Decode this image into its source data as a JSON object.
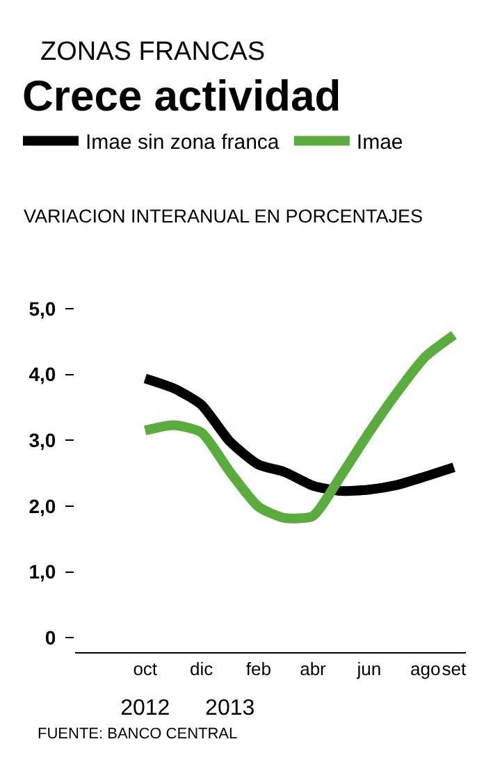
{
  "chart_data": {
    "type": "line",
    "subtitle": "ZONAS FRANCAS",
    "title": "Crece actividad",
    "ylabel": "VARIACION INTERANUAL EN PORCENTAJES",
    "x": [
      "2012-10",
      "2012-11",
      "2012-12",
      "2013-01",
      "2013-02",
      "2013-03",
      "2013-04",
      "2013-05",
      "2013-06",
      "2013-07",
      "2013-08",
      "2013-09"
    ],
    "series": [
      {
        "name": "Imae sin zona franca",
        "color": "#000000",
        "values": [
          3.94,
          3.79,
          3.54,
          2.98,
          2.63,
          2.52,
          2.31,
          2.23,
          2.25,
          2.32,
          2.45,
          2.59
        ]
      },
      {
        "name": "Imae",
        "color": "#5aad3c",
        "values": [
          3.15,
          3.23,
          3.12,
          2.52,
          1.99,
          1.82,
          1.85,
          2.45,
          3.12,
          3.72,
          4.27,
          4.6
        ]
      }
    ],
    "xlim": [
      "2012-07-17",
      "2013-09-14"
    ],
    "xticks": [
      {
        "value": "2012-10",
        "label": "oct"
      },
      {
        "value": "2012-12",
        "label": "dic"
      },
      {
        "value": "2013-02",
        "label": "feb"
      },
      {
        "value": "2013-04",
        "label": "abr"
      },
      {
        "value": "2013-06",
        "label": "jun"
      },
      {
        "value": "2013-08",
        "label": "ago"
      },
      {
        "value": "2013-09",
        "label": "set"
      }
    ],
    "x2lim": [
      "2012-07-17",
      "2013-09-14"
    ],
    "x2ticks": [
      {
        "value": "2012-10",
        "label": "2012"
      },
      {
        "value": "2013-01",
        "label": "2013"
      }
    ],
    "ylim": [
      -0.22,
      5
    ],
    "yticks": [
      {
        "value": 0,
        "label": "0"
      },
      {
        "value": 1,
        "label": "1,0"
      },
      {
        "value": 2,
        "label": "2,0"
      },
      {
        "value": 3,
        "label": "3,0"
      },
      {
        "value": 4,
        "label": "4,0"
      },
      {
        "value": 5,
        "label": "5,0"
      }
    ],
    "grid": false,
    "legend": "top",
    "line_style": "solid",
    "marker": "none",
    "annotations": [
      "FUENTE: BANCO CENTRAL"
    ]
  }
}
